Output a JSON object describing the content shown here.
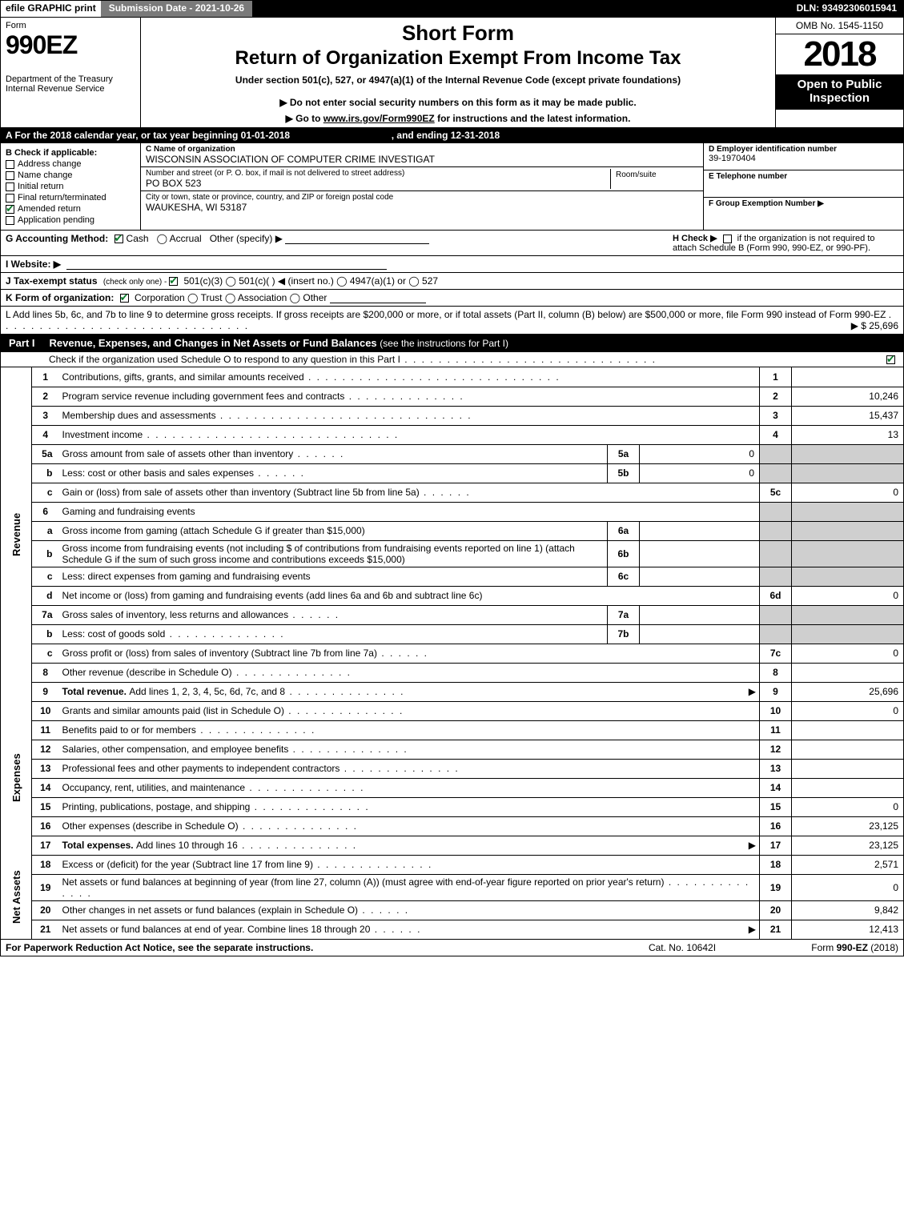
{
  "colors": {
    "black": "#000000",
    "white": "#ffffff",
    "gray_header": "#7a7a7a",
    "gray_shade": "#cfcfcf",
    "check_green": "#0a7a2a"
  },
  "topbar": {
    "efile_prefix": "efile ",
    "efile_bold": "GRAPHIC ",
    "efile_print": "print",
    "submission": "Submission Date - 2021-10-26",
    "dln": "DLN: 93492306015941"
  },
  "header": {
    "form_label": "Form",
    "form_no": "990EZ",
    "dept": "Department of the Treasury\nInternal Revenue Service",
    "short": "Short Form",
    "title": "Return of Organization Exempt From Income Tax",
    "under": "Under section 501(c), 527, or 4947(a)(1) of the Internal Revenue Code (except private foundations)",
    "warn": "▶ Do not enter social security numbers on this form as it may be made public.",
    "goto_pre": "▶ Go to ",
    "goto_link": "www.irs.gov/Form990EZ",
    "goto_post": " for instructions and the latest information.",
    "omb": "OMB No. 1545-1150",
    "year": "2018",
    "open": "Open to Public Inspection"
  },
  "period": {
    "text_a": "A For the 2018 calendar year, or tax year beginning 01-01-2018",
    "text_b": ", and ending 12-31-2018"
  },
  "blockB": {
    "label": "B  Check if applicable:",
    "items": [
      {
        "label": "Address change",
        "checked": false
      },
      {
        "label": "Name change",
        "checked": false
      },
      {
        "label": "Initial return",
        "checked": false
      },
      {
        "label": "Final return/terminated",
        "checked": false
      },
      {
        "label": "Amended return",
        "checked": true
      },
      {
        "label": "Application pending",
        "checked": false
      }
    ]
  },
  "blockC": {
    "c_label": "C Name of organization",
    "c_value": "WISCONSIN ASSOCIATION OF COMPUTER CRIME INVESTIGAT",
    "addr_label": "Number and street (or P. O. box, if mail is not delivered to street address)",
    "addr_value": "PO BOX 523",
    "room_label": "Room/suite",
    "city_label": "City or town, state or province, country, and ZIP or foreign postal code",
    "city_value": "WAUKESHA, WI  53187"
  },
  "blockD": {
    "d_label": "D Employer identification number",
    "d_value": "39-1970404",
    "e_label": "E Telephone number",
    "f_label": "F Group Exemption Number   ▶"
  },
  "lineG": {
    "label": "G Accounting Method:",
    "cash": "Cash",
    "accrual": "Accrual",
    "other": "Other (specify) ▶"
  },
  "lineH": {
    "label": "H  Check ▶",
    "text": "if the organization is not required to attach Schedule B (Form 990, 990-EZ, or 990-PF)."
  },
  "lineI": {
    "label": "I Website: ▶"
  },
  "lineJ": {
    "label": "J Tax-exempt status",
    "paren": "(check only one) - ",
    "opts": "501(c)(3)   ◯ 501(c)(  ) ◀ (insert no.)  ◯ 4947(a)(1) or  ◯ 527"
  },
  "lineK": {
    "label": "K Form of organization:",
    "opts": "Corporation   ◯ Trust   ◯ Association   ◯ Other"
  },
  "lineL": {
    "text": "L Add lines 5b, 6c, and 7b to line 9 to determine gross receipts. If gross receipts are $200,000 or more, or if total assets (Part II, column (B) below) are $500,000 or more, file Form 990 instead of Form 990-EZ",
    "amount": "▶ $ 25,696"
  },
  "part1": {
    "tag": "Part I",
    "title": "Revenue, Expenses, and Changes in Net Assets or Fund Balances ",
    "paren": "(see the instructions for Part I)",
    "sub": "Check if the organization used Schedule O to respond to any question in this Part I",
    "sub_checked": true
  },
  "sections": {
    "revenue": "Revenue",
    "expenses": "Expenses",
    "netassets": "Net Assets"
  },
  "rows": [
    {
      "sec": "revenue",
      "n": "1",
      "desc": "Contributions, gifts, grants, and similar amounts received",
      "dots": "dots",
      "rnum": "1",
      "rval": ""
    },
    {
      "sec": "revenue",
      "n": "2",
      "desc": "Program service revenue including government fees and contracts",
      "dots": "dots-s",
      "rnum": "2",
      "rval": "10,246"
    },
    {
      "sec": "revenue",
      "n": "3",
      "desc": "Membership dues and assessments",
      "dots": "dots",
      "rnum": "3",
      "rval": "15,437"
    },
    {
      "sec": "revenue",
      "n": "4",
      "desc": "Investment income",
      "dots": "dots",
      "rnum": "4",
      "rval": "13"
    },
    {
      "sec": "revenue",
      "n": "5a",
      "sub": true,
      "desc": "Gross amount from sale of assets other than inventory",
      "dots": "dots-xs",
      "inlab": "5a",
      "inval": "0",
      "shade_r": true
    },
    {
      "sec": "revenue",
      "n": "b",
      "sub": true,
      "desc": "Less: cost or other basis and sales expenses",
      "dots": "dots-xs",
      "inlab": "5b",
      "inval": "0",
      "shade_r": true
    },
    {
      "sec": "revenue",
      "n": "c",
      "sub": true,
      "desc": "Gain or (loss) from sale of assets other than inventory (Subtract line 5b from line 5a)",
      "dots": "dots-xs",
      "rnum": "5c",
      "rval": "0"
    },
    {
      "sec": "revenue",
      "n": "6",
      "desc": "Gaming and fundraising events",
      "shade_r": true,
      "no_rnum": true
    },
    {
      "sec": "revenue",
      "n": "a",
      "sub": true,
      "desc": "Gross income from gaming (attach Schedule G if greater than $15,000)",
      "inlab": "6a",
      "inval": "",
      "shade_r": true
    },
    {
      "sec": "revenue",
      "n": "b",
      "sub": true,
      "desc": "Gross income from fundraising events (not including $                    of contributions from fundraising events reported on line 1) (attach Schedule G if the sum of such gross income and contributions exceeds $15,000)",
      "multiline": true,
      "inlab": "6b",
      "inval": "",
      "shade_r": true
    },
    {
      "sec": "revenue",
      "n": "c",
      "sub": true,
      "desc": "Less: direct expenses from gaming and fundraising events",
      "dots": "",
      "inlab": "6c",
      "inval": "",
      "shade_r": true
    },
    {
      "sec": "revenue",
      "n": "d",
      "sub": true,
      "desc": "Net income or (loss) from gaming and fundraising events (add lines 6a and 6b and subtract line 6c)",
      "rnum": "6d",
      "rval": "0"
    },
    {
      "sec": "revenue",
      "n": "7a",
      "sub": true,
      "desc": "Gross sales of inventory, less returns and allowances",
      "dots": "dots-xs",
      "inlab": "7a",
      "inval": "",
      "shade_r": true
    },
    {
      "sec": "revenue",
      "n": "b",
      "sub": true,
      "desc": "Less: cost of goods sold",
      "dots": "dots-s",
      "inlab": "7b",
      "inval": "",
      "shade_r": true
    },
    {
      "sec": "revenue",
      "n": "c",
      "sub": true,
      "desc": "Gross profit or (loss) from sales of inventory (Subtract line 7b from line 7a)",
      "dots": "dots-xs",
      "rnum": "7c",
      "rval": "0"
    },
    {
      "sec": "revenue",
      "n": "8",
      "desc": "Other revenue (describe in Schedule O)",
      "dots": "dots-s",
      "rnum": "8",
      "rval": ""
    },
    {
      "sec": "revenue",
      "n": "9",
      "desc_bold": "Total revenue. ",
      "desc": "Add lines 1, 2, 3, 4, 5c, 6d, 7c, and 8",
      "dots": "dots-s",
      "arrow": true,
      "rnum": "9",
      "rval": "25,696"
    },
    {
      "sec": "expenses",
      "n": "10",
      "desc": "Grants and similar amounts paid (list in Schedule O)",
      "dots": "dots-s",
      "rnum": "10",
      "rval": "0"
    },
    {
      "sec": "expenses",
      "n": "11",
      "desc": "Benefits paid to or for members",
      "dots": "dots-s",
      "rnum": "11",
      "rval": ""
    },
    {
      "sec": "expenses",
      "n": "12",
      "desc": "Salaries, other compensation, and employee benefits",
      "dots": "dots-s",
      "rnum": "12",
      "rval": ""
    },
    {
      "sec": "expenses",
      "n": "13",
      "desc": "Professional fees and other payments to independent contractors",
      "dots": "dots-s",
      "rnum": "13",
      "rval": ""
    },
    {
      "sec": "expenses",
      "n": "14",
      "desc": "Occupancy, rent, utilities, and maintenance",
      "dots": "dots-s",
      "rnum": "14",
      "rval": ""
    },
    {
      "sec": "expenses",
      "n": "15",
      "desc": "Printing, publications, postage, and shipping",
      "dots": "dots-s",
      "rnum": "15",
      "rval": "0"
    },
    {
      "sec": "expenses",
      "n": "16",
      "desc": "Other expenses (describe in Schedule O)",
      "dots": "dots-s",
      "rnum": "16",
      "rval": "23,125"
    },
    {
      "sec": "expenses",
      "n": "17",
      "desc_bold": "Total expenses. ",
      "desc": "Add lines 10 through 16",
      "dots": "dots-s",
      "arrow": true,
      "rnum": "17",
      "rval": "23,125"
    },
    {
      "sec": "netassets",
      "n": "18",
      "desc": "Excess or (deficit) for the year (Subtract line 17 from line 9)",
      "dots": "dots-s",
      "rnum": "18",
      "rval": "2,571"
    },
    {
      "sec": "netassets",
      "n": "19",
      "desc": "Net assets or fund balances at beginning of year (from line 27, column (A)) (must agree with end-of-year figure reported on prior year's return)",
      "multiline": true,
      "dots": "dots-s",
      "rnum": "19",
      "rval": "0"
    },
    {
      "sec": "netassets",
      "n": "20",
      "desc": "Other changes in net assets or fund balances (explain in Schedule O)",
      "dots": "dots-xs",
      "rnum": "20",
      "rval": "9,842"
    },
    {
      "sec": "netassets",
      "n": "21",
      "desc": "Net assets or fund balances at end of year. Combine lines 18 through 20",
      "dots": "dots-xs",
      "arrow": true,
      "rnum": "21",
      "rval": "12,413"
    }
  ],
  "footer": {
    "left": "For Paperwork Reduction Act Notice, see the separate instructions.",
    "mid": "Cat. No. 10642I",
    "right_pre": "Form ",
    "right_bold": "990-EZ",
    "right_post": " (2018)"
  }
}
